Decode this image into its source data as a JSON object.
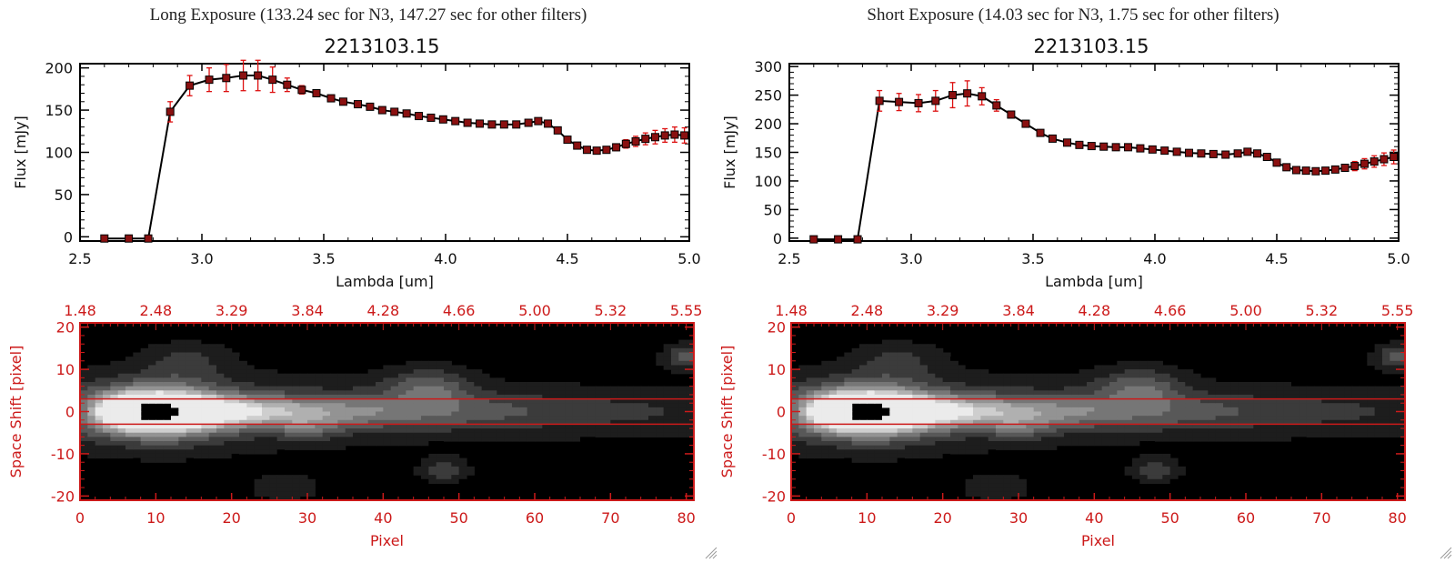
{
  "colors": {
    "axis_black": "#000000",
    "axis_red": "#cc1a1a",
    "errorbar": "#dd1111",
    "marker": "#8a1010",
    "line": "#000000",
    "image_background": "#000000"
  },
  "panels": [
    {
      "title": "Long Exposure (133.24 sec for N3, 147.27 sec for other filters)",
      "object_name": "2213103.15"
    },
    {
      "title": "Short Exposure (14.03 sec for N3, 1.75 sec for other filters)",
      "object_name": "2213103.15"
    }
  ],
  "chart_data": [
    {
      "type": "line",
      "title": "2213103.15",
      "xlabel": "Lambda [um]",
      "ylabel": "Flux [mJy]",
      "xlim": [
        2.5,
        5.0
      ],
      "ylim": [
        -5,
        205
      ],
      "xticks": [
        "2.5",
        "3.0",
        "3.5",
        "4.0",
        "4.5",
        "5.0"
      ],
      "yticks": [
        "0",
        "50",
        "100",
        "150",
        "200"
      ],
      "series": [
        {
          "x": [
            2.6,
            2.7,
            2.78,
            2.87,
            2.95,
            3.03,
            3.1,
            3.17,
            3.23,
            3.29,
            3.35,
            3.41,
            3.47,
            3.53,
            3.58,
            3.64,
            3.69,
            3.74,
            3.79,
            3.84,
            3.89,
            3.94,
            3.99,
            4.04,
            4.09,
            4.14,
            4.19,
            4.24,
            4.29,
            4.34,
            4.38,
            4.42,
            4.46,
            4.5,
            4.54,
            4.58,
            4.62,
            4.66,
            4.7,
            4.74,
            4.78,
            4.82,
            4.86,
            4.9,
            4.94,
            4.98
          ],
          "y": [
            -2,
            -2,
            -2,
            148,
            179,
            186,
            188,
            191,
            191,
            186,
            180,
            174,
            170,
            164,
            160,
            157,
            154,
            150,
            148,
            146,
            143,
            141,
            139,
            137,
            135,
            134,
            133,
            133,
            133,
            135,
            137,
            134,
            126,
            115,
            108,
            103,
            102,
            103,
            106,
            110,
            113,
            116,
            118,
            120,
            121,
            120
          ],
          "yerr": [
            0,
            0,
            0,
            12,
            12,
            14,
            16,
            18,
            18,
            15,
            8,
            5,
            4,
            3,
            3,
            3,
            3,
            3,
            3,
            3,
            3,
            3,
            3,
            3,
            3,
            3,
            3,
            3,
            3,
            3,
            3,
            3,
            3,
            3,
            3,
            3,
            3,
            3,
            4,
            5,
            6,
            7,
            8,
            8,
            9,
            9
          ]
        }
      ]
    },
    {
      "type": "line",
      "title": "2213103.15",
      "xlabel": "Lambda [um]",
      "ylabel": "Flux [mJy]",
      "xlim": [
        2.5,
        5.0
      ],
      "ylim": [
        -5,
        305
      ],
      "xticks": [
        "2.5",
        "3.0",
        "3.5",
        "4.0",
        "4.5",
        "5.0"
      ],
      "yticks": [
        "0",
        "50",
        "100",
        "150",
        "200",
        "250",
        "300"
      ],
      "series": [
        {
          "x": [
            2.6,
            2.7,
            2.78,
            2.87,
            2.95,
            3.03,
            3.1,
            3.17,
            3.23,
            3.29,
            3.35,
            3.41,
            3.47,
            3.53,
            3.58,
            3.64,
            3.69,
            3.74,
            3.79,
            3.84,
            3.89,
            3.94,
            3.99,
            4.04,
            4.09,
            4.14,
            4.19,
            4.24,
            4.29,
            4.34,
            4.38,
            4.42,
            4.46,
            4.5,
            4.54,
            4.58,
            4.62,
            4.66,
            4.7,
            4.74,
            4.78,
            4.82,
            4.86,
            4.9,
            4.94,
            4.98
          ],
          "y": [
            -2,
            -2,
            -2,
            240,
            238,
            236,
            240,
            250,
            253,
            248,
            232,
            216,
            200,
            184,
            174,
            167,
            163,
            161,
            160,
            159,
            159,
            157,
            155,
            153,
            151,
            149,
            148,
            147,
            146,
            148,
            151,
            148,
            142,
            132,
            124,
            119,
            118,
            117,
            118,
            120,
            123,
            126,
            130,
            134,
            138,
            142
          ],
          "yerr": [
            0,
            0,
            0,
            18,
            15,
            15,
            18,
            22,
            22,
            15,
            10,
            6,
            5,
            4,
            4,
            4,
            3,
            3,
            3,
            3,
            3,
            3,
            3,
            3,
            3,
            3,
            3,
            3,
            3,
            3,
            3,
            3,
            3,
            3,
            3,
            3,
            3,
            3,
            4,
            5,
            6,
            8,
            9,
            10,
            11,
            12
          ]
        }
      ]
    },
    {
      "type": "heatmap",
      "xlabel": "Pixel",
      "ylabel": "Space Shift [pixel]",
      "xlim": [
        0,
        81
      ],
      "ylim": [
        -21,
        21
      ],
      "xticks": [
        "0",
        "10",
        "20",
        "30",
        "40",
        "50",
        "60",
        "70",
        "80"
      ],
      "yticks": [
        "-20",
        "-10",
        "0",
        "10",
        "20"
      ],
      "top_ticks": [
        "1.48",
        "2.48",
        "3.29",
        "3.84",
        "4.28",
        "4.66",
        "5.00",
        "5.32",
        "5.55"
      ],
      "aperture_lines": [
        3,
        -3
      ],
      "blobs": [
        {
          "x": 9.5,
          "y": 0,
          "peak": 1.0,
          "sx": 6,
          "sy": 4
        },
        {
          "x": 46,
          "y": 6,
          "peak": 0.35,
          "sx": 4,
          "sy": 3
        },
        {
          "x": 48,
          "y": -14,
          "peak": 0.28,
          "sx": 2,
          "sy": 2
        },
        {
          "x": 30,
          "y": -4,
          "peak": 0.2,
          "sx": 3,
          "sy": 2
        },
        {
          "x": 80,
          "y": 13,
          "peak": 0.35,
          "sx": 2,
          "sy": 2
        },
        {
          "x": 14,
          "y": 12,
          "peak": 0.2,
          "sx": 4,
          "sy": 3
        },
        {
          "x": 27,
          "y": -18,
          "peak": 0.18,
          "sx": 3,
          "sy": 2
        }
      ]
    },
    {
      "type": "heatmap",
      "xlabel": "Pixel",
      "ylabel": "Space Shift [pixel]",
      "xlim": [
        0,
        81
      ],
      "ylim": [
        -21,
        21
      ],
      "xticks": [
        "0",
        "10",
        "20",
        "30",
        "40",
        "50",
        "60",
        "70",
        "80"
      ],
      "yticks": [
        "-20",
        "-10",
        "0",
        "10",
        "20"
      ],
      "top_ticks": [
        "1.48",
        "2.48",
        "3.29",
        "3.84",
        "4.28",
        "4.66",
        "5.00",
        "5.32",
        "5.55"
      ],
      "aperture_lines": [
        3,
        -3
      ],
      "blobs": [
        {
          "x": 9.5,
          "y": 0,
          "peak": 1.0,
          "sx": 6,
          "sy": 4
        },
        {
          "x": 46,
          "y": 6,
          "peak": 0.35,
          "sx": 4,
          "sy": 3
        },
        {
          "x": 48,
          "y": -14,
          "peak": 0.28,
          "sx": 2,
          "sy": 2
        },
        {
          "x": 30,
          "y": -4,
          "peak": 0.2,
          "sx": 3,
          "sy": 2
        },
        {
          "x": 80,
          "y": 13,
          "peak": 0.35,
          "sx": 2,
          "sy": 2
        },
        {
          "x": 14,
          "y": 12,
          "peak": 0.2,
          "sx": 4,
          "sy": 3
        },
        {
          "x": 27,
          "y": -18,
          "peak": 0.18,
          "sx": 3,
          "sy": 2
        }
      ]
    }
  ]
}
